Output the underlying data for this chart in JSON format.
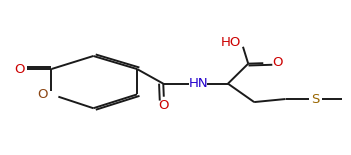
{
  "bg_color": "#ffffff",
  "line_color": "#1a1a1a",
  "lw": 1.4,
  "dbl_sep": 0.006,
  "figsize": [
    3.51,
    1.55
  ],
  "dpi": 100,
  "xlim": [
    0.0,
    1.0
  ],
  "ylim": [
    0.0,
    1.0
  ]
}
